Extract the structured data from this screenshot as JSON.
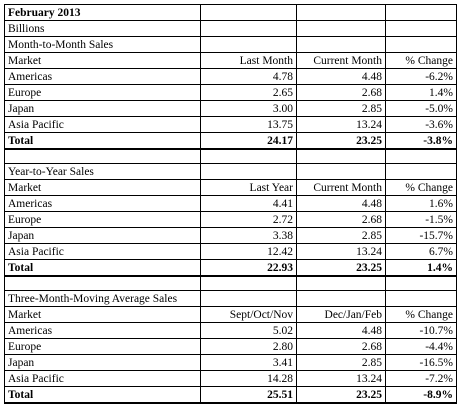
{
  "title": "February 2013",
  "units": "Billions",
  "sections": [
    {
      "heading": "Month-to-Month Sales",
      "columns": [
        "Market",
        "Last Month",
        "Current Month",
        "% Change"
      ],
      "rows": [
        {
          "market": "Americas",
          "prev": "4.78",
          "curr": "4.48",
          "change": "-6.2%"
        },
        {
          "market": "Europe",
          "prev": "2.65",
          "curr": "2.68",
          "change": "1.4%"
        },
        {
          "market": "Japan",
          "prev": "3.00",
          "curr": "2.85",
          "change": "-5.0%"
        },
        {
          "market": "Asia Pacific",
          "prev": "13.75",
          "curr": "13.24",
          "change": "-3.6%"
        }
      ],
      "total": {
        "market": "Total",
        "prev": "24.17",
        "curr": "23.25",
        "change": "-3.8%"
      }
    },
    {
      "heading": "Year-to-Year Sales",
      "columns": [
        "Market",
        "Last Year",
        "Current Month",
        "% Change"
      ],
      "rows": [
        {
          "market": "Americas",
          "prev": "4.41",
          "curr": "4.48",
          "change": "1.6%"
        },
        {
          "market": "Europe",
          "prev": "2.72",
          "curr": "2.68",
          "change": "-1.5%"
        },
        {
          "market": "Japan",
          "prev": "3.38",
          "curr": "2.85",
          "change": "-15.7%"
        },
        {
          "market": "Asia Pacific",
          "prev": "12.42",
          "curr": "13.24",
          "change": "6.7%"
        }
      ],
      "total": {
        "market": "Total",
        "prev": "22.93",
        "curr": "23.25",
        "change": "1.4%"
      }
    },
    {
      "heading": "Three-Month-Moving Average Sales",
      "columns": [
        "Market",
        "Sept/Oct/Nov",
        "Dec/Jan/Feb",
        "% Change"
      ],
      "rows": [
        {
          "market": "Americas",
          "prev": "5.02",
          "curr": "4.48",
          "change": "-10.7%"
        },
        {
          "market": "Europe",
          "prev": "2.80",
          "curr": "2.68",
          "change": "-4.4%"
        },
        {
          "market": "Japan",
          "prev": "3.41",
          "curr": "2.85",
          "change": "-16.5%"
        },
        {
          "market": "Asia Pacific",
          "prev": "14.28",
          "curr": "13.24",
          "change": "-7.2%"
        }
      ],
      "total": {
        "market": "Total",
        "prev": "25.51",
        "curr": "23.25",
        "change": "-8.9%"
      }
    }
  ]
}
